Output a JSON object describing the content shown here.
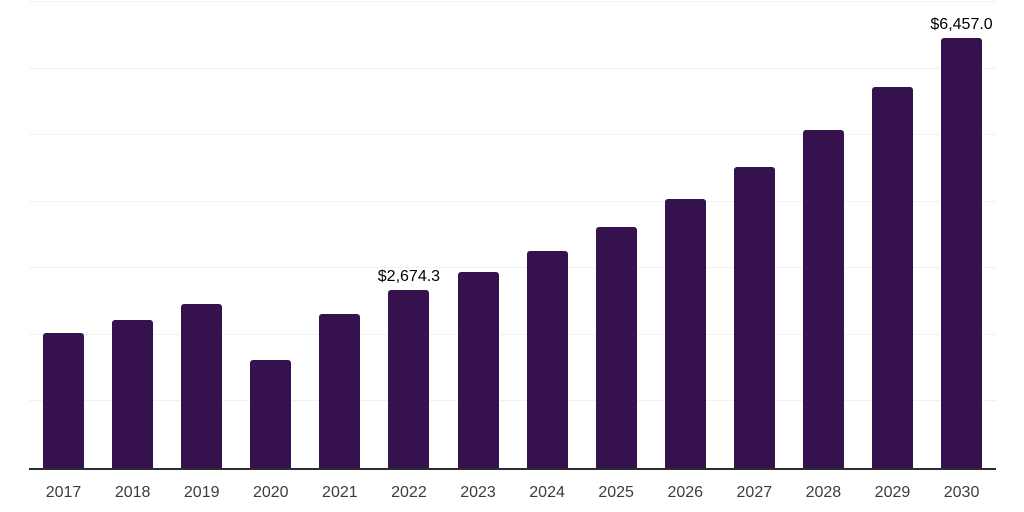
{
  "chart_data": {
    "type": "bar",
    "title": "",
    "xlabel": "",
    "ylabel": "",
    "categories": [
      "2017",
      "2018",
      "2019",
      "2020",
      "2021",
      "2022",
      "2023",
      "2024",
      "2025",
      "2026",
      "2027",
      "2028",
      "2029",
      "2030"
    ],
    "values": [
      2035,
      2225,
      2465,
      1625,
      2310,
      2674.3,
      2950,
      3265,
      3615,
      4035,
      4520,
      5075,
      5730,
      6457.0
    ],
    "value_labels": {
      "2022": "$2,674.3",
      "2030": "$6,457.0"
    },
    "ylim": [
      0,
      7000
    ],
    "gridline_step": 1000,
    "grid": true,
    "legend": false,
    "colors": {
      "bar": "#35114E",
      "gridline": "#F2F2F2",
      "axis": "#2D2D2D",
      "value_label": "#000000",
      "tick_label": "#3C3C3C"
    }
  }
}
